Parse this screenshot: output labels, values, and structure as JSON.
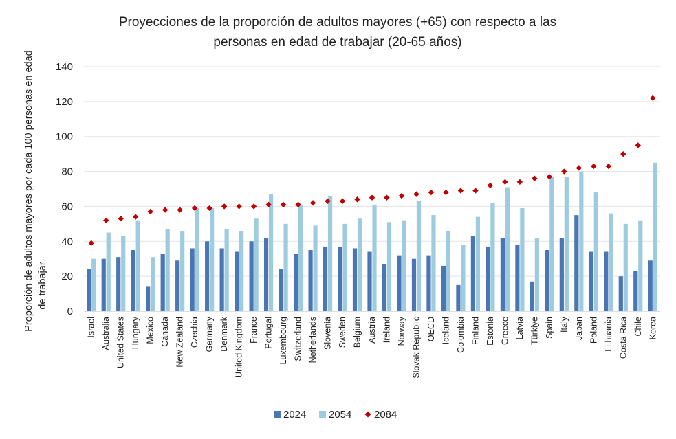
{
  "chart_data": {
    "type": "bar",
    "title_line1": "Proyecciones de la proporción de adultos mayores (+65) con respecto a las",
    "title_line2": "personas en edad de trabajar (20-65 años)",
    "ylabel_line1": "Proporción de adultos mayores por cada 100 personas en edad",
    "ylabel_line2": "de trabajar",
    "xlabel": "",
    "ylim": [
      0,
      140
    ],
    "yticks": [
      0,
      20,
      40,
      60,
      80,
      100,
      120,
      140
    ],
    "grid": true,
    "legend_position": "bottom",
    "categories": [
      "Israel",
      "Australia",
      "United States",
      "Hungary",
      "Mexico",
      "Canada",
      "New Zealand",
      "Czechia",
      "Germany",
      "Denmark",
      "United Kingdom",
      "France",
      "Portugal",
      "Luxembourg",
      "Switzerland",
      "Netherlands",
      "Slovenia",
      "Sweden",
      "Belgium",
      "Austria",
      "Ireland",
      "Norway",
      "Slovak Republic",
      "OECD",
      "Iceland",
      "Colombia",
      "Finland",
      "Estonia",
      "Greece",
      "Latvia",
      "Türkiye",
      "Spain",
      "Italy",
      "Japan",
      "Poland",
      "Lithuania",
      "Costa Rica",
      "Chile",
      "Korea"
    ],
    "series": [
      {
        "name": "2024",
        "kind": "bar",
        "color": "#4a77b4",
        "values": [
          24,
          30,
          31,
          35,
          14,
          33,
          29,
          36,
          40,
          36,
          34,
          40,
          42,
          24,
          33,
          35,
          37,
          37,
          36,
          34,
          27,
          32,
          30,
          32,
          26,
          15,
          43,
          37,
          42,
          38,
          17,
          35,
          42,
          55,
          34,
          34,
          20,
          23,
          29
        ]
      },
      {
        "name": "2054",
        "kind": "bar",
        "color": "#9dcbdf",
        "values": [
          30,
          45,
          43,
          52,
          31,
          47,
          46,
          59,
          59,
          47,
          46,
          53,
          67,
          50,
          61,
          49,
          66,
          50,
          53,
          61,
          51,
          52,
          63,
          55,
          46,
          38,
          54,
          62,
          71,
          59,
          42,
          77,
          77,
          80,
          68,
          56,
          50,
          52,
          85
        ]
      },
      {
        "name": "2084",
        "kind": "marker",
        "color": "#c00000",
        "values": [
          39,
          52,
          53,
          54,
          57,
          58,
          58,
          59,
          59,
          60,
          60,
          60,
          61,
          61,
          61,
          62,
          63,
          63,
          64,
          65,
          65,
          66,
          67,
          68,
          68,
          69,
          69,
          72,
          74,
          74,
          76,
          77,
          80,
          82,
          83,
          83,
          90,
          95,
          122
        ]
      }
    ]
  }
}
